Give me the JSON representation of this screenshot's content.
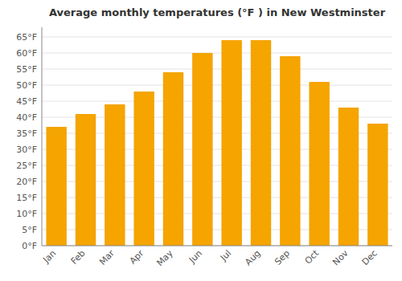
{
  "chart_data": {
    "type": "bar",
    "title": "Average monthly temperatures (°F ) in New Westminster",
    "categories": [
      "Jan",
      "Feb",
      "Mar",
      "Apr",
      "May",
      "Jun",
      "Jul",
      "Aug",
      "Sep",
      "Oct",
      "Nov",
      "Dec"
    ],
    "values": [
      37,
      41,
      44,
      48,
      54,
      60,
      64,
      64,
      59,
      51,
      43,
      38
    ],
    "color": "#F5A400",
    "ylim": [
      0,
      68
    ],
    "yticks": [
      {
        "value": 0,
        "label": "0°F"
      },
      {
        "value": 5,
        "label": "5°F"
      },
      {
        "value": 10,
        "label": "10°F"
      },
      {
        "value": 15,
        "label": "15°F"
      },
      {
        "value": 20,
        "label": "20°F"
      },
      {
        "value": 25,
        "label": "25°F"
      },
      {
        "value": 30,
        "label": "30°F"
      },
      {
        "value": 35,
        "label": "35°F"
      },
      {
        "value": 40,
        "label": "40°F"
      },
      {
        "value": 45,
        "label": "45°F"
      },
      {
        "value": 50,
        "label": "50°F"
      },
      {
        "value": 55,
        "label": "55°F"
      },
      {
        "value": 60,
        "label": "60°F"
      },
      {
        "value": 65,
        "label": "65°F"
      }
    ],
    "grid": true
  }
}
